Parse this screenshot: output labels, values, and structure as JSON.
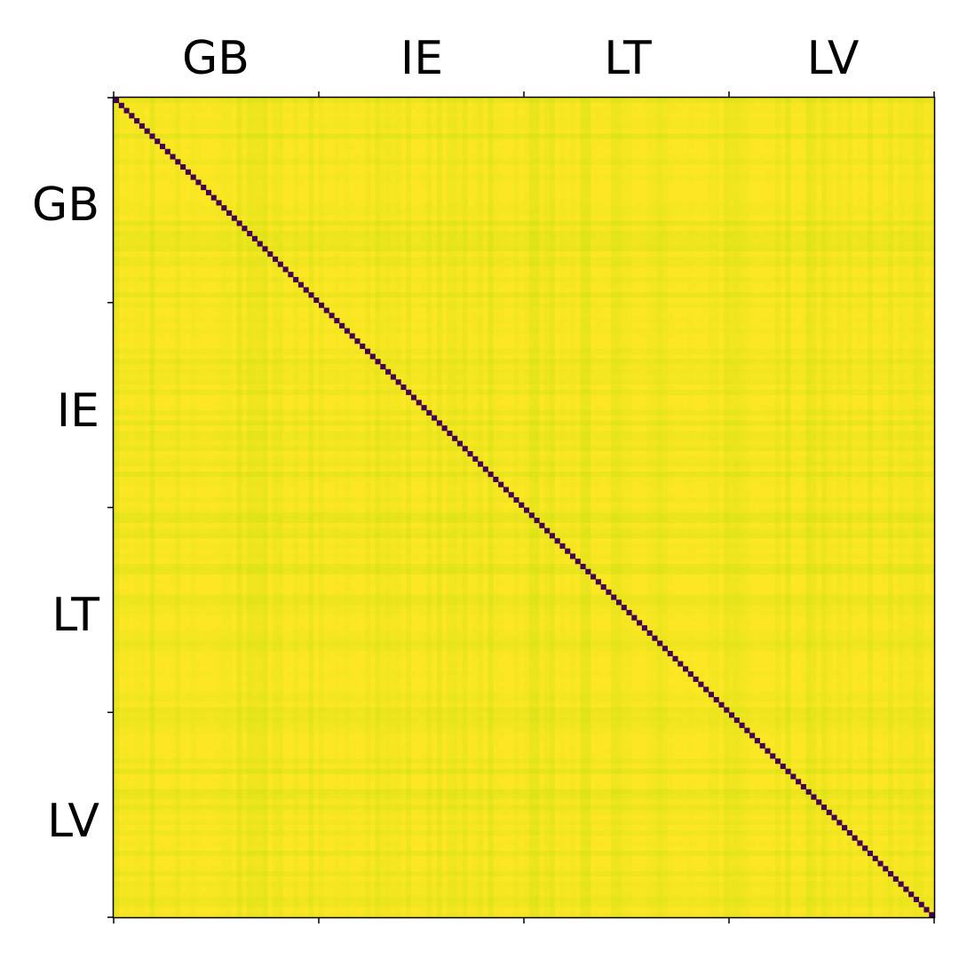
{
  "chart_data": {
    "type": "heatmap",
    "title": "",
    "xlabel": "",
    "ylabel": "",
    "x_tick_labels": [
      "GB",
      "IE",
      "LT",
      "LV"
    ],
    "y_tick_labels": [
      "GB",
      "IE",
      "LT",
      "LV"
    ],
    "x_axis_position": "top",
    "grid": false,
    "colormap": "viridis",
    "group_size": 40,
    "matrix_description": "similarity matrix; diagonal minimum (dark purple), off-diagonal near maximum (yellow)",
    "diagonal_value": 0.0,
    "offdiagonal_value_range": [
      0.9,
      1.0
    ],
    "colors": {
      "low": "#440154",
      "high": "#fde725",
      "mid_high": "#dde318"
    }
  }
}
